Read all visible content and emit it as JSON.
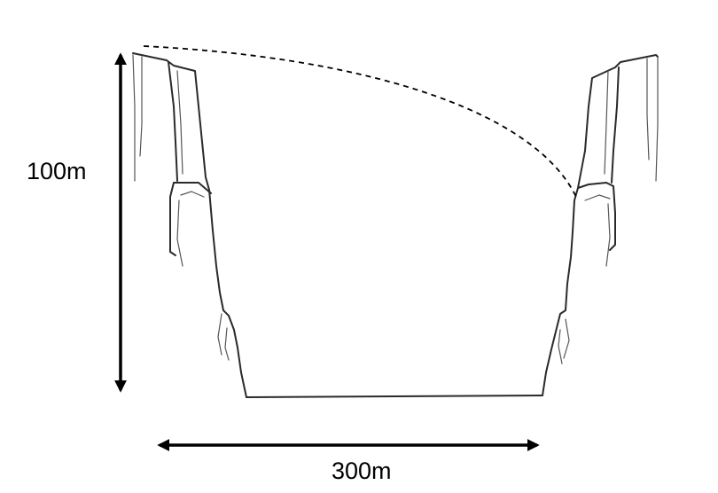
{
  "labels": {
    "height": "100m",
    "width": "300m"
  },
  "colors": {
    "ink": "#000000",
    "cliff": "#2a2a2a"
  }
}
